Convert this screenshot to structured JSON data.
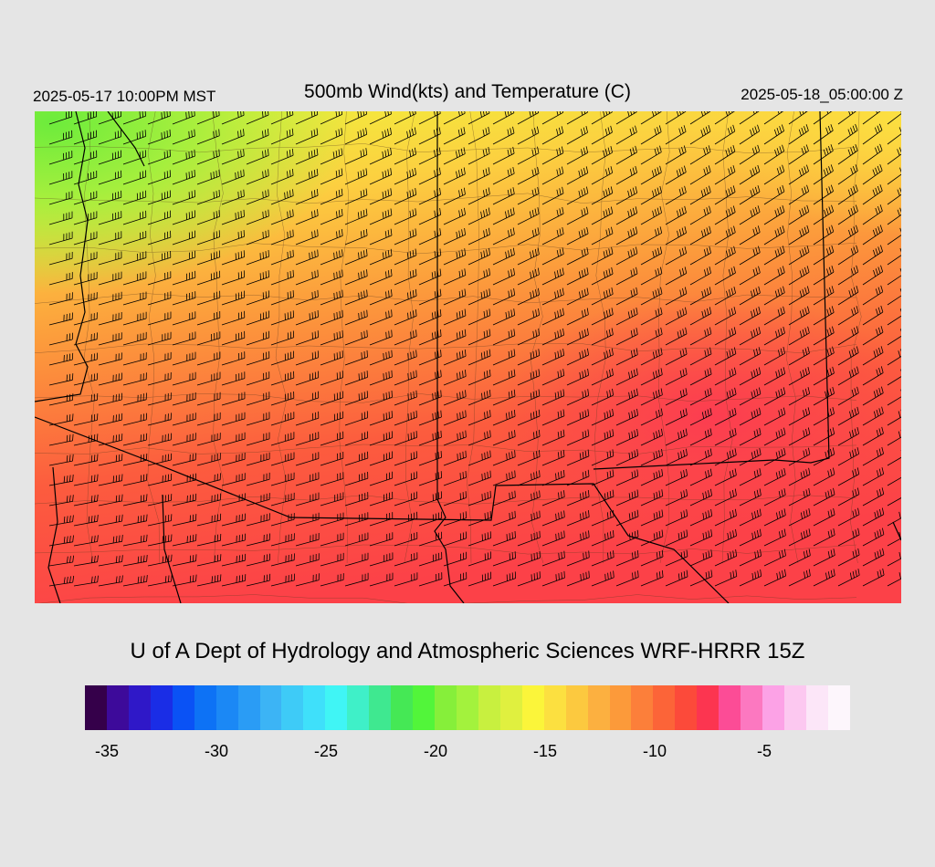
{
  "header": {
    "local_time": "2025-05-17 10:00PM MST",
    "title": "500mb Wind(kts) and Temperature (C)",
    "valid_time": "2025-05-18_05:00:00 Z"
  },
  "credit": "U of A Dept of Hydrology and Atmospheric Sciences WRF-HRRR 15Z",
  "colorbar": {
    "colors": [
      "#35004a",
      "#3d0a9a",
      "#2f18c8",
      "#1a2de6",
      "#0a52f5",
      "#0d72f5",
      "#1b88f5",
      "#2a9cf5",
      "#3cb4f5",
      "#3ecbf7",
      "#3fe0fa",
      "#40f5f5",
      "#3ff0c8",
      "#3fe890",
      "#45e855",
      "#52f53a",
      "#86ef3a",
      "#a3f23d",
      "#c8f03f",
      "#e0f03f",
      "#fbf53a",
      "#fce040",
      "#fcc93f",
      "#fcb040",
      "#fc9a3a",
      "#fc7f3a",
      "#fc6438",
      "#fc4a3a",
      "#fc3550",
      "#fc4c96",
      "#fc78c0",
      "#fca2e6",
      "#fcc8f0",
      "#fce6f8",
      "#fdf6fc"
    ],
    "tick_labels": [
      "-35",
      "-30",
      "-25",
      "-20",
      "-15",
      "-10",
      "-5"
    ]
  },
  "map": {
    "field": "500mb temperature (C) with wind barbs (kts)",
    "warm_color": "#fc4148",
    "mid_color": "#fc9040",
    "cool_color": "#fbee3c",
    "coldest_color": "#88ec3c",
    "boundary_color": "#000000"
  }
}
